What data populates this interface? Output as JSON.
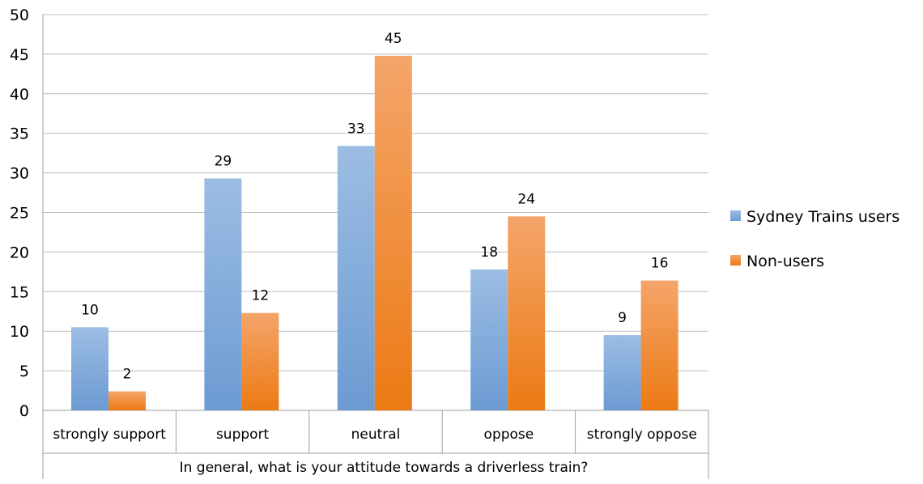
{
  "chart_data": {
    "type": "bar",
    "title": "",
    "xlabel": "In general, what is your attitude towards a driverless train?",
    "ylabel": "",
    "ylim": [
      0,
      50
    ],
    "yticks": [
      0,
      5,
      10,
      15,
      20,
      25,
      30,
      35,
      40,
      45,
      50
    ],
    "grid": true,
    "legend_position": "right",
    "categories": [
      "strongly support",
      "support",
      "neutral",
      "oppose",
      "strongly oppose"
    ],
    "series": [
      {
        "name": "Sydney Trains users",
        "values": [
          10.5,
          29.3,
          33.4,
          17.8,
          9.5
        ],
        "data_labels": [
          "10",
          "29",
          "33",
          "18",
          "9"
        ],
        "color": "#7FA8D8"
      },
      {
        "name": "Non-users",
        "values": [
          2.4,
          12.3,
          44.8,
          24.5,
          16.4
        ],
        "data_labels": [
          "2",
          "12",
          "45",
          "24",
          "16"
        ],
        "color": "#F28C38"
      }
    ]
  }
}
